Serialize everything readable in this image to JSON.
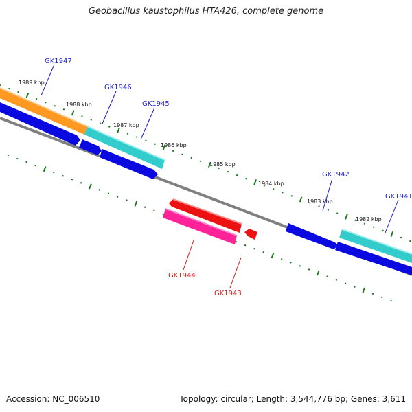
{
  "title": "Geobacillus kaustophilus HTA426, complete genome",
  "footer": {
    "accession": "Accession: NC_006510",
    "summary": "Topology: circular; Length: 3,544,776 bp; Genes: 3,611"
  },
  "scale_ticks": [
    {
      "label": "1989 kbp"
    },
    {
      "label": "1988 kbp"
    },
    {
      "label": "1987 kbp"
    },
    {
      "label": "1986 kbp"
    },
    {
      "label": "1985 kbp"
    },
    {
      "label": "1984 kbp"
    },
    {
      "label": "1983 kbp"
    },
    {
      "label": "1982 kbp"
    }
  ],
  "genes": [
    {
      "label": "GK1947",
      "strand": "forward"
    },
    {
      "label": "GK1946",
      "strand": "forward"
    },
    {
      "label": "GK1945",
      "strand": "forward"
    },
    {
      "label": "GK1944",
      "strand": "reverse"
    },
    {
      "label": "GK1943",
      "strand": "reverse"
    },
    {
      "label": "GK1942",
      "strand": "forward"
    },
    {
      "label": "GK1941",
      "strand": "forward"
    }
  ],
  "colors": {
    "backbone": "#808080",
    "tick": "#1a7a1a",
    "forward_label": "#1a1acc",
    "reverse_label": "#cc1a1a",
    "orange": "#ff9922",
    "cyan": "#33cccc",
    "blue": "#0a0ae0",
    "red": "#ee1111",
    "pink": "#ff2299"
  }
}
